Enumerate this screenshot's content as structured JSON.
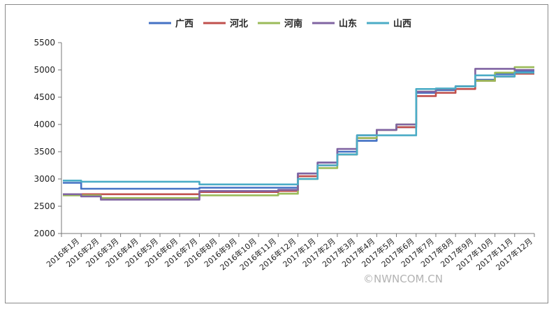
{
  "chart_data": {
    "type": "line",
    "title": "",
    "xlabel": "",
    "ylabel": "",
    "ylim": [
      2000,
      5500
    ],
    "yticks": [
      2000,
      2500,
      3000,
      3500,
      4000,
      4500,
      5000,
      5500
    ],
    "grid": false,
    "legend": "top",
    "categories": [
      "2016年1月",
      "2016年2月",
      "2016年3月",
      "2016年4月",
      "2016年5月",
      "2016年6月",
      "2016年7月",
      "2016年8月",
      "2016年9月",
      "2016年10月",
      "2016年11月",
      "2016年12月",
      "2017年1月",
      "2017年2月",
      "2017年3月",
      "2017年4月",
      "2017年5月",
      "2017年6月",
      "2017年7月",
      "2017年8月",
      "2017年9月",
      "2017年10月",
      "2017年11月",
      "2017年12月"
    ],
    "series": [
      {
        "name": "广西",
        "color": "#4472C4",
        "values": [
          2930,
          2820,
          2820,
          2820,
          2820,
          2820,
          2820,
          2840,
          2840,
          2840,
          2840,
          2840,
          3100,
          3300,
          3500,
          3700,
          3900,
          3950,
          4580,
          4630,
          4700,
          4820,
          4920,
          4980
        ]
      },
      {
        "name": "河北",
        "color": "#C0504D",
        "values": [
          2720,
          2720,
          2720,
          2720,
          2720,
          2720,
          2720,
          2760,
          2760,
          2760,
          2760,
          2780,
          3050,
          3250,
          3450,
          3750,
          3900,
          3950,
          4520,
          4580,
          4650,
          4800,
          4880,
          4930
        ]
      },
      {
        "name": "河南",
        "color": "#9BBB59",
        "values": [
          2700,
          2700,
          2650,
          2650,
          2650,
          2650,
          2650,
          2700,
          2700,
          2700,
          2700,
          2730,
          3000,
          3200,
          3450,
          3750,
          3900,
          4000,
          4600,
          4650,
          4700,
          4800,
          4950,
          5050
        ]
      },
      {
        "name": "山东",
        "color": "#8064A2",
        "values": [
          2720,
          2680,
          2620,
          2620,
          2620,
          2620,
          2620,
          2780,
          2780,
          2780,
          2780,
          2800,
          3100,
          3300,
          3550,
          3800,
          3900,
          4000,
          4600,
          4650,
          4700,
          5020,
          5020,
          5000
        ]
      },
      {
        "name": "山西",
        "color": "#4BACC6",
        "values": [
          2970,
          2950,
          2950,
          2950,
          2950,
          2950,
          2950,
          2900,
          2900,
          2900,
          2900,
          2900,
          3000,
          3250,
          3450,
          3800,
          3800,
          3800,
          4650,
          4660,
          4700,
          4900,
          4880,
          4950
        ]
      }
    ]
  },
  "watermark": "©NWNCOM.CN"
}
